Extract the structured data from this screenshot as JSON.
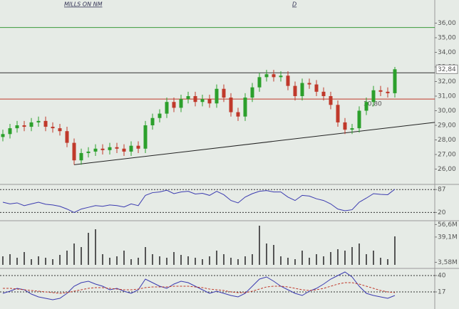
{
  "chart_data": [
    {
      "type": "candlestick",
      "title": "MILLS ON NM",
      "subtitle": "D",
      "open": [
        28.2,
        28.4,
        28.8,
        29.0,
        28.9,
        29.2,
        29.3,
        28.9,
        28.8,
        28.6,
        27.8,
        26.6,
        27.1,
        27.2,
        27.4,
        27.3,
        27.5,
        27.4,
        27.2,
        27.6,
        27.4,
        29.0,
        29.5,
        29.8,
        30.6,
        30.2,
        30.8,
        31.0,
        30.6,
        30.8,
        30.5,
        31.5,
        30.9,
        29.9,
        29.6,
        30.9,
        31.6,
        32.3,
        32.5,
        32.3,
        32.4,
        31.7,
        31.0,
        31.9,
        31.8,
        31.3,
        31.0,
        30.4,
        29.2,
        28.7,
        28.8,
        30.0,
        30.6,
        31.4,
        31.3,
        31.2
      ],
      "high": [
        28.7,
        29.1,
        29.3,
        29.3,
        29.5,
        29.6,
        29.6,
        29.2,
        29.1,
        28.9,
        28.1,
        27.4,
        27.5,
        27.7,
        27.7,
        27.8,
        27.8,
        27.7,
        27.9,
        27.9,
        29.3,
        29.8,
        30.1,
        30.9,
        30.9,
        31.1,
        31.3,
        31.3,
        31.1,
        31.1,
        31.8,
        31.8,
        31.2,
        30.2,
        31.2,
        31.9,
        32.6,
        32.8,
        32.8,
        32.7,
        32.7,
        32.0,
        32.2,
        32.2,
        32.1,
        31.6,
        31.3,
        30.7,
        29.5,
        29.1,
        30.3,
        30.9,
        31.7,
        31.7,
        31.6,
        33.0
      ],
      "low": [
        27.9,
        28.1,
        28.5,
        28.6,
        28.6,
        28.9,
        28.6,
        28.5,
        28.3,
        27.5,
        26.3,
        26.3,
        26.8,
        26.9,
        27.0,
        27.0,
        27.1,
        26.9,
        26.9,
        27.1,
        27.1,
        28.7,
        29.2,
        29.5,
        29.9,
        29.9,
        30.5,
        30.3,
        30.3,
        30.2,
        30.2,
        30.6,
        29.6,
        29.3,
        29.3,
        30.6,
        31.3,
        32.0,
        32.0,
        32.0,
        31.4,
        30.7,
        30.7,
        31.5,
        31.0,
        30.7,
        30.1,
        28.9,
        28.4,
        28.4,
        28.5,
        29.7,
        30.3,
        31.0,
        30.9,
        30.9
      ],
      "close": [
        28.4,
        28.8,
        29.0,
        28.9,
        29.2,
        29.3,
        28.9,
        28.8,
        28.6,
        27.8,
        26.6,
        27.1,
        27.2,
        27.4,
        27.3,
        27.5,
        27.4,
        27.2,
        27.6,
        27.4,
        29.0,
        29.5,
        29.8,
        30.6,
        30.2,
        30.8,
        31.0,
        30.6,
        30.8,
        30.5,
        31.5,
        30.9,
        29.9,
        29.6,
        30.9,
        31.6,
        32.3,
        32.5,
        32.3,
        32.4,
        31.7,
        31.0,
        31.9,
        31.8,
        31.3,
        31.0,
        30.4,
        29.2,
        28.7,
        28.8,
        30.0,
        30.6,
        31.4,
        31.3,
        31.2,
        32.84
      ],
      "up_color": "#2ca02c",
      "down_color": "#c0392b",
      "ylim": [
        25,
        37
      ],
      "yticks": [
        {
          "value": 26,
          "label": "26,00"
        },
        {
          "value": 27,
          "label": "27,00"
        },
        {
          "value": 28,
          "label": "28,00"
        },
        {
          "value": 29,
          "label": "29,00"
        },
        {
          "value": 30,
          "label": "30,00"
        },
        {
          "value": 31,
          "label": "31,00"
        },
        {
          "value": 32,
          "label": "32,00"
        },
        {
          "value": 33,
          "label": "33,00"
        },
        {
          "value": 34,
          "label": "34,00"
        },
        {
          "value": 35,
          "label": "35,00"
        },
        {
          "value": 36,
          "label": "36,00"
        }
      ],
      "levels": [
        {
          "value": 35.7,
          "color": "#3a9a3a"
        },
        {
          "value": 32.6,
          "color": "#333333"
        },
        {
          "value": 30.8,
          "color": "#c0392b",
          "label": "30,80"
        }
      ],
      "trendline": {
        "x": [
          10,
          60.6
        ],
        "y": [
          26.3,
          29.2
        ],
        "color": "#222222"
      },
      "last_label": {
        "value": 32.84,
        "label": "32,84"
      }
    },
    {
      "type": "line",
      "series": [
        {
          "color": "#3b3bb0",
          "values": [
            50,
            45,
            48,
            40,
            45,
            50,
            44,
            42,
            38,
            30,
            20,
            30,
            35,
            40,
            38,
            42,
            40,
            36,
            45,
            40,
            70,
            78,
            80,
            85,
            75,
            80,
            82,
            74,
            76,
            70,
            82,
            72,
            55,
            48,
            65,
            75,
            82,
            84,
            80,
            80,
            65,
            55,
            70,
            68,
            60,
            55,
            45,
            30,
            25,
            28,
            50,
            62,
            75,
            73,
            72,
            88
          ]
        }
      ],
      "ylim": [
        0,
        100
      ],
      "yticks": [
        20,
        87
      ],
      "grid": true
    },
    {
      "type": "bar",
      "color": "#555555",
      "values": [
        12,
        15,
        10,
        18,
        8,
        12,
        10,
        8,
        14,
        20,
        30,
        25,
        45,
        50,
        15,
        10,
        12,
        20,
        8,
        10,
        25,
        15,
        12,
        10,
        18,
        14,
        12,
        10,
        8,
        12,
        20,
        15,
        10,
        8,
        12,
        15,
        55,
        30,
        28,
        12,
        10,
        8,
        20,
        10,
        15,
        12,
        18,
        22,
        20,
        25,
        30,
        15,
        20,
        10,
        8,
        40
      ],
      "ylim": [
        0,
        60
      ],
      "yticks": [
        {
          "value": 3.58,
          "label": "3,58M"
        },
        {
          "value": 39.1,
          "label": "39,1M"
        },
        {
          "value": 56.6,
          "label": "56,6M"
        }
      ]
    },
    {
      "type": "line",
      "series": [
        {
          "color": "#3b3bb0",
          "values": [
            15,
            18,
            22,
            20,
            14,
            10,
            8,
            6,
            8,
            15,
            25,
            30,
            32,
            28,
            25,
            20,
            22,
            18,
            15,
            20,
            35,
            30,
            25,
            22,
            28,
            32,
            30,
            25,
            20,
            15,
            18,
            15,
            12,
            10,
            15,
            25,
            35,
            38,
            32,
            25,
            20,
            15,
            12,
            18,
            22,
            28,
            35,
            40,
            45,
            38,
            25,
            15,
            12,
            10,
            8,
            12
          ]
        },
        {
          "color": "#c0392b",
          "dashed": true,
          "values": [
            22,
            22,
            21,
            20,
            19,
            18,
            17,
            16,
            15,
            16,
            18,
            20,
            22,
            23,
            23,
            22,
            21,
            20,
            20,
            21,
            23,
            24,
            24,
            24,
            25,
            25,
            25,
            24,
            23,
            21,
            20,
            19,
            17,
            16,
            16,
            18,
            21,
            24,
            25,
            25,
            24,
            22,
            20,
            19,
            20,
            22,
            25,
            28,
            30,
            30,
            28,
            25,
            22,
            19,
            17,
            16
          ]
        }
      ],
      "ylim": [
        -3,
        47
      ],
      "yticks": [
        17,
        40
      ],
      "grid": true
    }
  ]
}
